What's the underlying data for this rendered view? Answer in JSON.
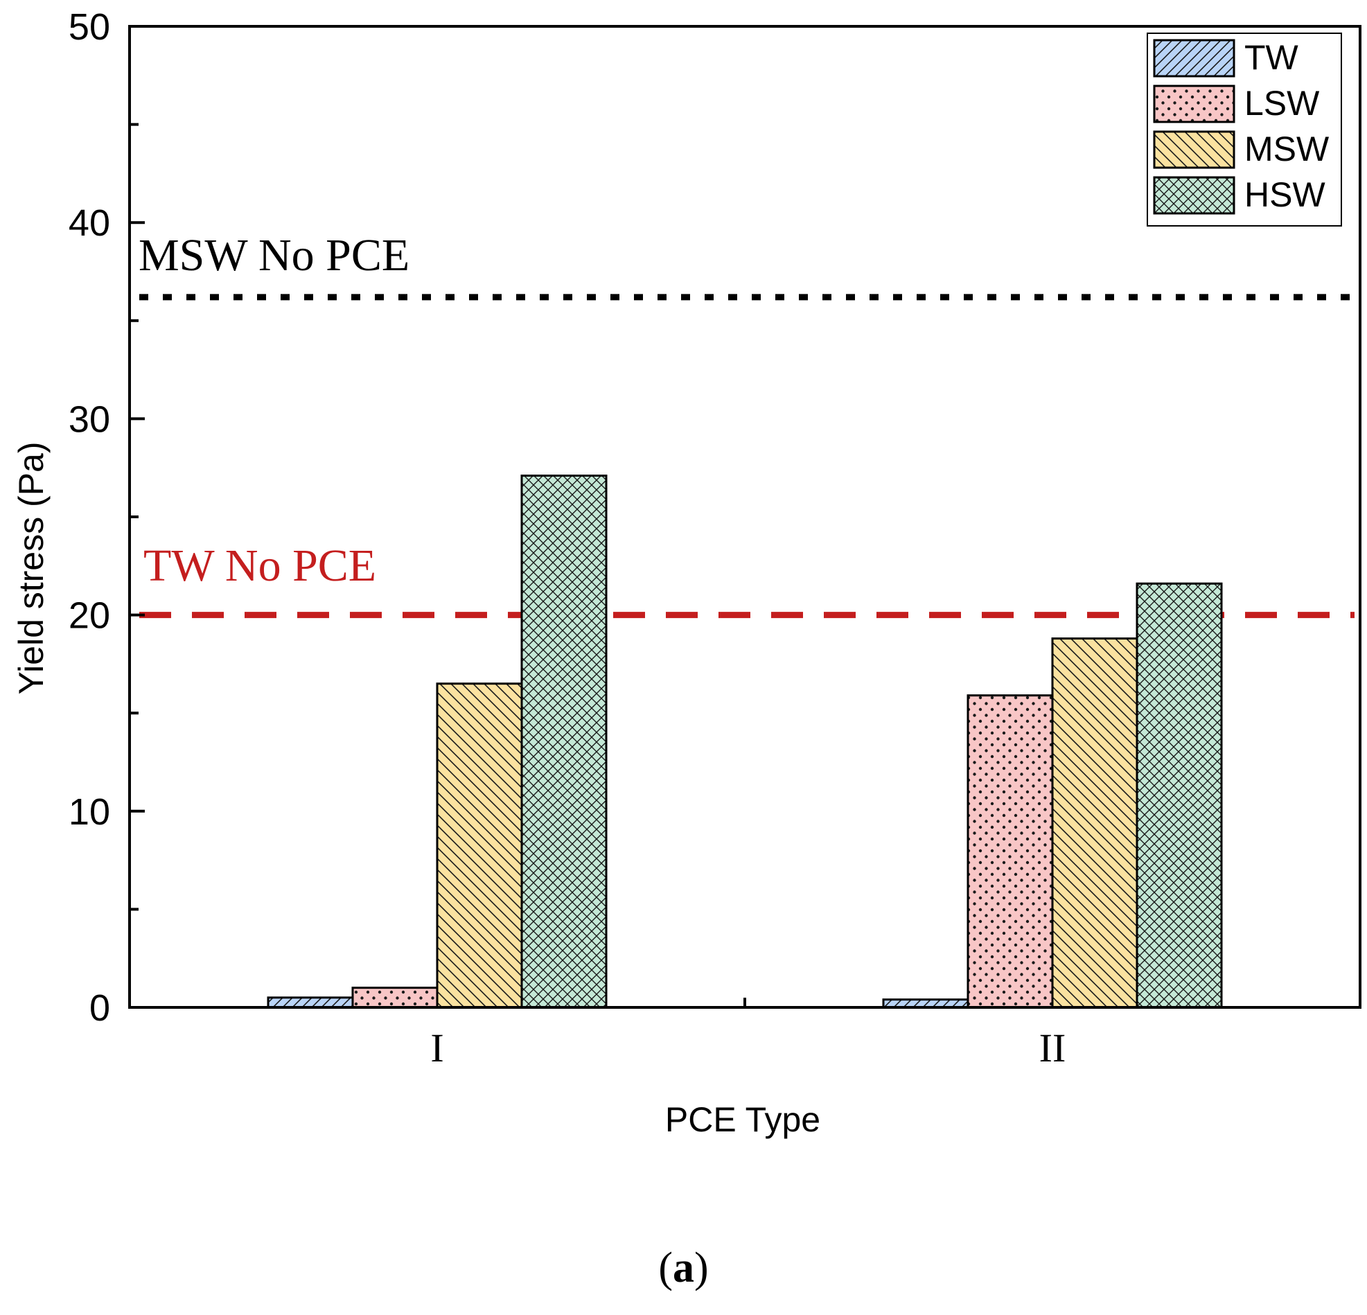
{
  "chart_data": {
    "type": "bar",
    "title": "",
    "xlabel": "PCE Type",
    "ylabel": "Yield stress (Pa)",
    "categories": [
      "I",
      "II"
    ],
    "ylim": [
      0,
      50
    ],
    "yticks": [
      "0",
      "10",
      "20",
      "30",
      "40",
      "50"
    ],
    "series": [
      {
        "name": "TW",
        "values": [
          0.5,
          0.4
        ],
        "color": "#b9d4f7",
        "pattern": "diagonal-up"
      },
      {
        "name": "LSW",
        "values": [
          1.0,
          15.9
        ],
        "color": "#f8c6c6",
        "pattern": "dots"
      },
      {
        "name": "MSW",
        "values": [
          16.5,
          18.8
        ],
        "color": "#fbe2a0",
        "pattern": "diagonal-down"
      },
      {
        "name": "HSW",
        "values": [
          27.1,
          21.6
        ],
        "color": "#c4e8d6",
        "pattern": "crosshatch"
      }
    ],
    "reference_lines": [
      {
        "label": "MSW No PCE",
        "value": 36.2,
        "color": "#000000",
        "style": "dotted"
      },
      {
        "label": "TW No PCE",
        "value": 20.0,
        "color": "#c41e1e",
        "style": "dashed"
      }
    ],
    "legend_position": "top-right",
    "grid": false
  },
  "panel_label": "a"
}
